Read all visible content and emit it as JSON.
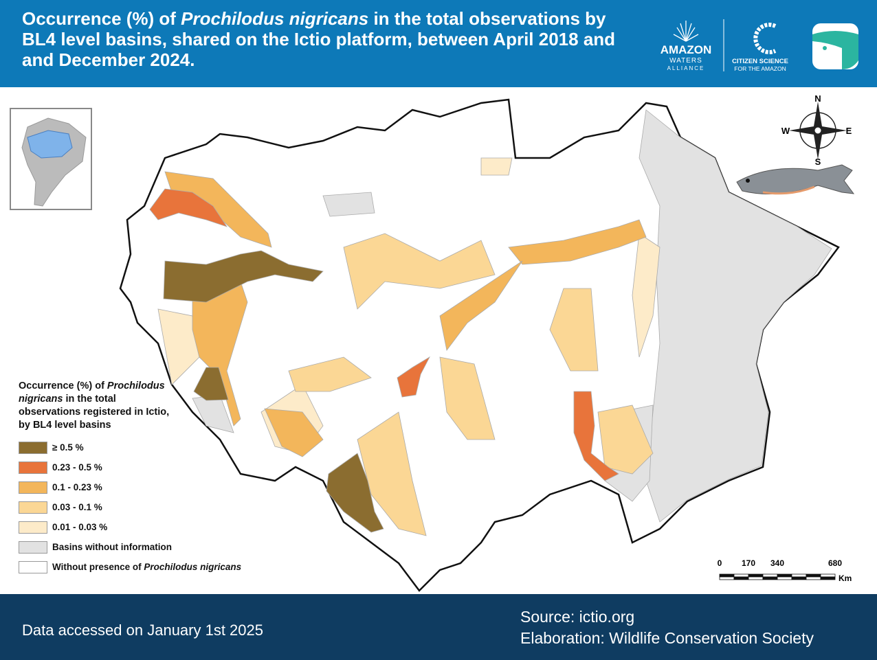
{
  "header": {
    "title_parts": [
      "Occurrence (%) of ",
      "Prochilodus nigricans",
      " in the total observations by BL4 level basins, shared on the Ictio platform, between April 2018 and and December 2024."
    ]
  },
  "logos": {
    "amazon": "AMAZON",
    "waters": "WATERS",
    "alliance": "ALLIANCE",
    "citizen": "CITIZEN SCIENCE",
    "for_amazon": "FOR THE AMAZON"
  },
  "compass": {
    "n": "N",
    "s": "S",
    "e": "E",
    "w": "W"
  },
  "legend": {
    "title_parts": [
      "Occurrence (%) of ",
      "Prochilodus nigricans",
      " in the total observations registered in Ictio, by BL4 level basins"
    ],
    "items": [
      {
        "label": "≥ 0.5 %",
        "color": "#8b6d30"
      },
      {
        "label": "0.23 - 0.5 %",
        "color": "#e8743b"
      },
      {
        "label": "0.1 - 0.23 %",
        "color": "#f3b65b"
      },
      {
        "label": "0.03 - 0.1 %",
        "color": "#fbd795"
      },
      {
        "label": "0.01 - 0.03 %",
        "color": "#fdebc9"
      },
      {
        "label": "Basins without information",
        "color": "#e2e2e2"
      },
      {
        "label_parts": [
          "Without presence of ",
          "Prochilodus nigricans"
        ],
        "color": "#ffffff"
      }
    ]
  },
  "scale": {
    "labels": [
      0,
      170,
      340,
      680
    ],
    "unit": "Km"
  },
  "footer": {
    "accessed": "Data accessed on January 1st 2025",
    "source": "Source: ictio.org",
    "elaboration": "Elaboration: Wildlife Conservation Society"
  }
}
